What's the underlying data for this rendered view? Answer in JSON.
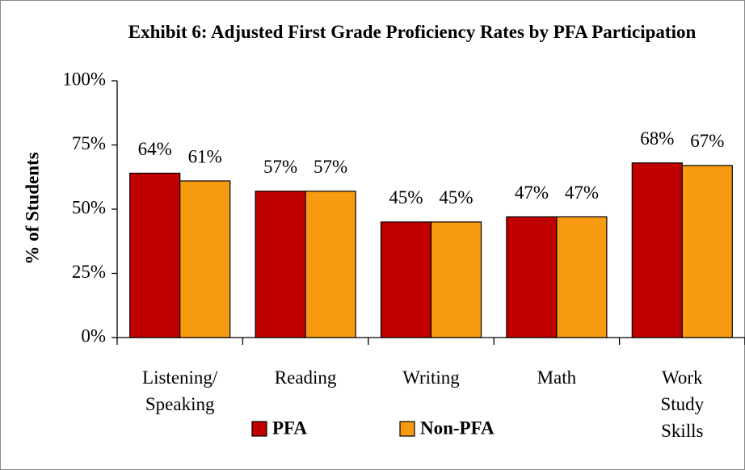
{
  "chart_data": {
    "type": "bar",
    "title": "Exhibit 6: Adjusted First Grade Proficiency Rates by PFA Participation",
    "y_label": "% of Students",
    "categories": [
      "Listening/ Speaking",
      "Reading",
      "Writing",
      "Math",
      "Work Study Skills"
    ],
    "series": [
      {
        "name": "PFA",
        "color": "#c00000",
        "values": [
          64,
          57,
          45,
          47,
          68
        ],
        "value_labels": [
          "64%",
          "57%",
          "45%",
          "47%",
          "68%"
        ]
      },
      {
        "name": "Non-PFA",
        "color": "#f79a10",
        "values": [
          61,
          57,
          45,
          47,
          67
        ],
        "value_labels": [
          "61%",
          "57%",
          "45%",
          "47%",
          "67%"
        ]
      }
    ],
    "ylim": [
      0,
      100
    ],
    "yticks": [
      {
        "value": 0,
        "label": "0%"
      },
      {
        "value": 25,
        "label": "25%"
      },
      {
        "value": 50,
        "label": "50%"
      },
      {
        "value": 75,
        "label": "75%"
      },
      {
        "value": 100,
        "label": "100%"
      }
    ],
    "grid": false,
    "legend": "bottom"
  }
}
